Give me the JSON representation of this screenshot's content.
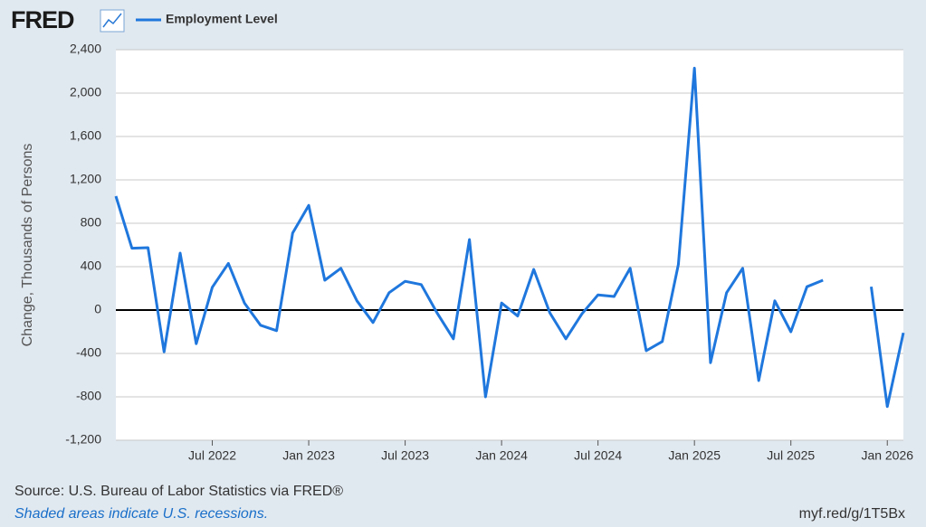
{
  "logo": "FRED",
  "chart_data": {
    "type": "line",
    "y_label": "Change, Thousands of Persons",
    "categories": [
      null,
      null,
      null,
      null,
      null,
      null,
      "Jul 2022",
      null,
      null,
      null,
      null,
      null,
      "Jan 2023",
      null,
      null,
      null,
      null,
      null,
      "Jul 2023",
      null,
      null,
      null,
      null,
      null,
      "Jan 2024",
      null,
      null,
      null,
      null,
      null,
      "Jul 2024",
      null,
      null,
      null,
      null,
      null,
      "Jan 2025",
      null,
      null,
      null,
      null,
      null,
      "Jul 2025",
      null,
      null,
      null,
      null,
      null,
      "Jan 2026",
      null
    ],
    "series": [
      {
        "name": "Employment Level",
        "color": "#1f77dd",
        "values": [
          1050,
          570,
          575,
          -385,
          525,
          -310,
          210,
          430,
          65,
          -140,
          -190,
          710,
          965,
          275,
          385,
          85,
          -115,
          160,
          265,
          235,
          -30,
          -265,
          650,
          -800,
          65,
          -55,
          375,
          -25,
          -265,
          -35,
          140,
          125,
          385,
          -375,
          -290,
          420,
          2230,
          -485,
          160,
          385,
          -650,
          85,
          -200,
          215,
          275,
          null,
          null,
          215,
          -890,
          -210
        ]
      }
    ],
    "ylim": [
      -1200,
      2400
    ],
    "yticks": [
      {
        "value": -1200,
        "label": "-1,200"
      },
      -800,
      -400,
      0,
      400,
      800,
      {
        "value": 1200,
        "label": "1,200"
      },
      {
        "value": 1600,
        "label": "1,600"
      },
      {
        "value": 2000,
        "label": "2,000"
      },
      {
        "value": 2400,
        "label": "2,400"
      }
    ],
    "grid": true,
    "source": "Source: U.S. Bureau of Labor Statistics via FRED®",
    "note": "Shaded areas indicate U.S. recessions.",
    "url": "myf.red/g/1T5Bx"
  }
}
